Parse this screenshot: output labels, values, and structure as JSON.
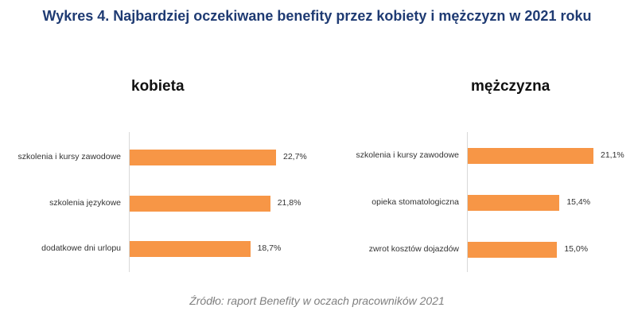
{
  "title": "Wykres 4. Najbardziej oczekiwane benefity przez kobiety i mężczyzn w 2021 roku",
  "source": "Źródło: raport Benefity w oczach pracowników 2021",
  "colors": {
    "bar": "#f79646",
    "title": "#1f3b73"
  },
  "chart_data": [
    {
      "type": "bar",
      "orientation": "horizontal",
      "title": "kobieta",
      "categories": [
        "szkolenia i kursy zawodowe",
        "szkolenia językowe",
        "dodatkowe dni urlopu"
      ],
      "values": [
        22.7,
        21.8,
        18.7
      ],
      "value_labels": [
        "22,7%",
        "21,8%",
        "18,7%"
      ],
      "unit": "%",
      "grid": false
    },
    {
      "type": "bar",
      "orientation": "horizontal",
      "title": "mężczyzna",
      "categories": [
        "szkolenia i kursy zawodowe",
        "opieka stomatologiczna",
        "zwrot kosztów dojazdów"
      ],
      "values": [
        21.1,
        15.4,
        15.0
      ],
      "value_labels": [
        "21,1%",
        "15,4%",
        "15,0%"
      ],
      "unit": "%",
      "grid": false
    }
  ]
}
